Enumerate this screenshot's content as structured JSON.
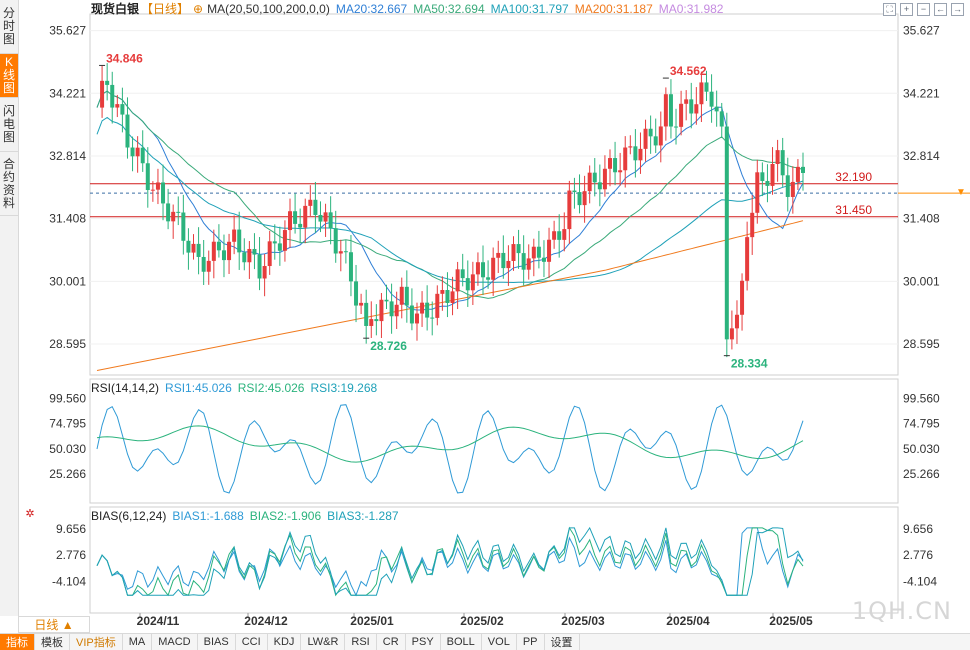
{
  "left_tabs": [
    {
      "label": "分时图",
      "active": false
    },
    {
      "label": "K线图",
      "active": true
    },
    {
      "label": "闪电图",
      "active": false
    },
    {
      "label": "合约资料",
      "active": false
    }
  ],
  "header": {
    "symbol": "现货白银",
    "period": "【日线】",
    "ma_label": "MA(20,50,100,200,0,0)",
    "ma_values": [
      {
        "text": "MA20:32.667",
        "color": "#2f7fd6"
      },
      {
        "text": "MA50:32.694",
        "color": "#3aaa7a"
      },
      {
        "text": "MA100:31.797",
        "color": "#1fa1b8"
      },
      {
        "text": "MA200:31.187",
        "color": "#f07a1e"
      },
      {
        "text": "MA0:31.982",
        "color": "#c58be0"
      }
    ]
  },
  "toolbar_icons": [
    "fullscreen-icon",
    "zoom-in-icon",
    "zoom-out-icon",
    "back-icon",
    "forward-icon"
  ],
  "colors": {
    "up": "#e63c3c",
    "down": "#2bb37d",
    "ma20": "#2f7fd6",
    "ma50": "#3aaa7a",
    "ma100": "#1fa1b8",
    "ma200": "#f07a1e",
    "hline": "#d11a1a",
    "current": "#ff8c00"
  },
  "chart_data": [
    {
      "type": "candlestick",
      "title": "现货白银 【日线】",
      "ylim": [
        27.9,
        36.0
      ],
      "y_ticks": [
        "35.627",
        "34.221",
        "32.814",
        "31.408",
        "30.001",
        "28.595"
      ],
      "x_ticks": [
        "2024/11",
        "2024/12",
        "2025/01",
        "2025/02",
        "2025/03",
        "2025/04",
        "2025/05"
      ],
      "annotations": [
        "34.846",
        "28.726",
        "34.562",
        "28.334"
      ],
      "horizontal_lines": [
        {
          "label": "32.190",
          "value": 32.19
        },
        {
          "label": "31.450",
          "value": 31.45
        }
      ],
      "current_price": 31.982,
      "legend": [
        {
          "name": "MA20",
          "value": 32.667
        },
        {
          "name": "MA50",
          "value": 32.694
        },
        {
          "name": "MA100",
          "value": 31.797
        },
        {
          "name": "MA200",
          "value": 31.187
        },
        {
          "name": "MA0",
          "value": 31.982
        }
      ]
    },
    {
      "type": "line",
      "title": "RSI(14,14,2)",
      "series": [
        {
          "name": "RSI1",
          "value": 45.026
        },
        {
          "name": "RSI2",
          "value": 45.026
        },
        {
          "name": "RSI3",
          "value": 19.268
        }
      ],
      "y_ticks": [
        "99.560",
        "74.795",
        "50.030",
        "25.266"
      ],
      "ylim": [
        0,
        100
      ]
    },
    {
      "type": "line",
      "title": "BIAS(6,12,24)",
      "series": [
        {
          "name": "BIAS1",
          "value": -1.688
        },
        {
          "name": "BIAS2",
          "value": -1.906
        },
        {
          "name": "BIAS3",
          "value": -1.287
        }
      ],
      "y_ticks": [
        "9.656",
        "2.776",
        "-4.104"
      ]
    }
  ],
  "rsi_header": {
    "label": "RSI(14,14,2)",
    "values": [
      {
        "text": "RSI1:45.026",
        "color": "#2f9ad6"
      },
      {
        "text": "RSI2:45.026",
        "color": "#2bb37d"
      },
      {
        "text": "RSI3:19.268",
        "color": "#1fa1b8"
      }
    ]
  },
  "bias_header": {
    "label": "BIAS(6,12,24)",
    "values": [
      {
        "text": "BIAS1:-1.688",
        "color": "#2f9ad6"
      },
      {
        "text": "BIAS2:-1.906",
        "color": "#2bb37d"
      },
      {
        "text": "BIAS3:-1.287",
        "color": "#1fa1b8"
      }
    ]
  },
  "period_selector": {
    "label": "日线 ▲"
  },
  "bottom_tabs": [
    {
      "label": "指标",
      "style": "active"
    },
    {
      "label": "模板",
      "style": ""
    },
    {
      "label": "VIP指标",
      "style": "highlight"
    },
    {
      "label": "MA",
      "style": ""
    },
    {
      "label": "MACD",
      "style": ""
    },
    {
      "label": "BIAS",
      "style": ""
    },
    {
      "label": "CCI",
      "style": ""
    },
    {
      "label": "KDJ",
      "style": ""
    },
    {
      "label": "LW&R",
      "style": ""
    },
    {
      "label": "RSI",
      "style": ""
    },
    {
      "label": "CR",
      "style": ""
    },
    {
      "label": "PSY",
      "style": ""
    },
    {
      "label": "BOLL",
      "style": ""
    },
    {
      "label": "VOL",
      "style": ""
    },
    {
      "label": "PP",
      "style": ""
    },
    {
      "label": "设置",
      "style": ""
    }
  ],
  "watermark": "1QH.CN"
}
